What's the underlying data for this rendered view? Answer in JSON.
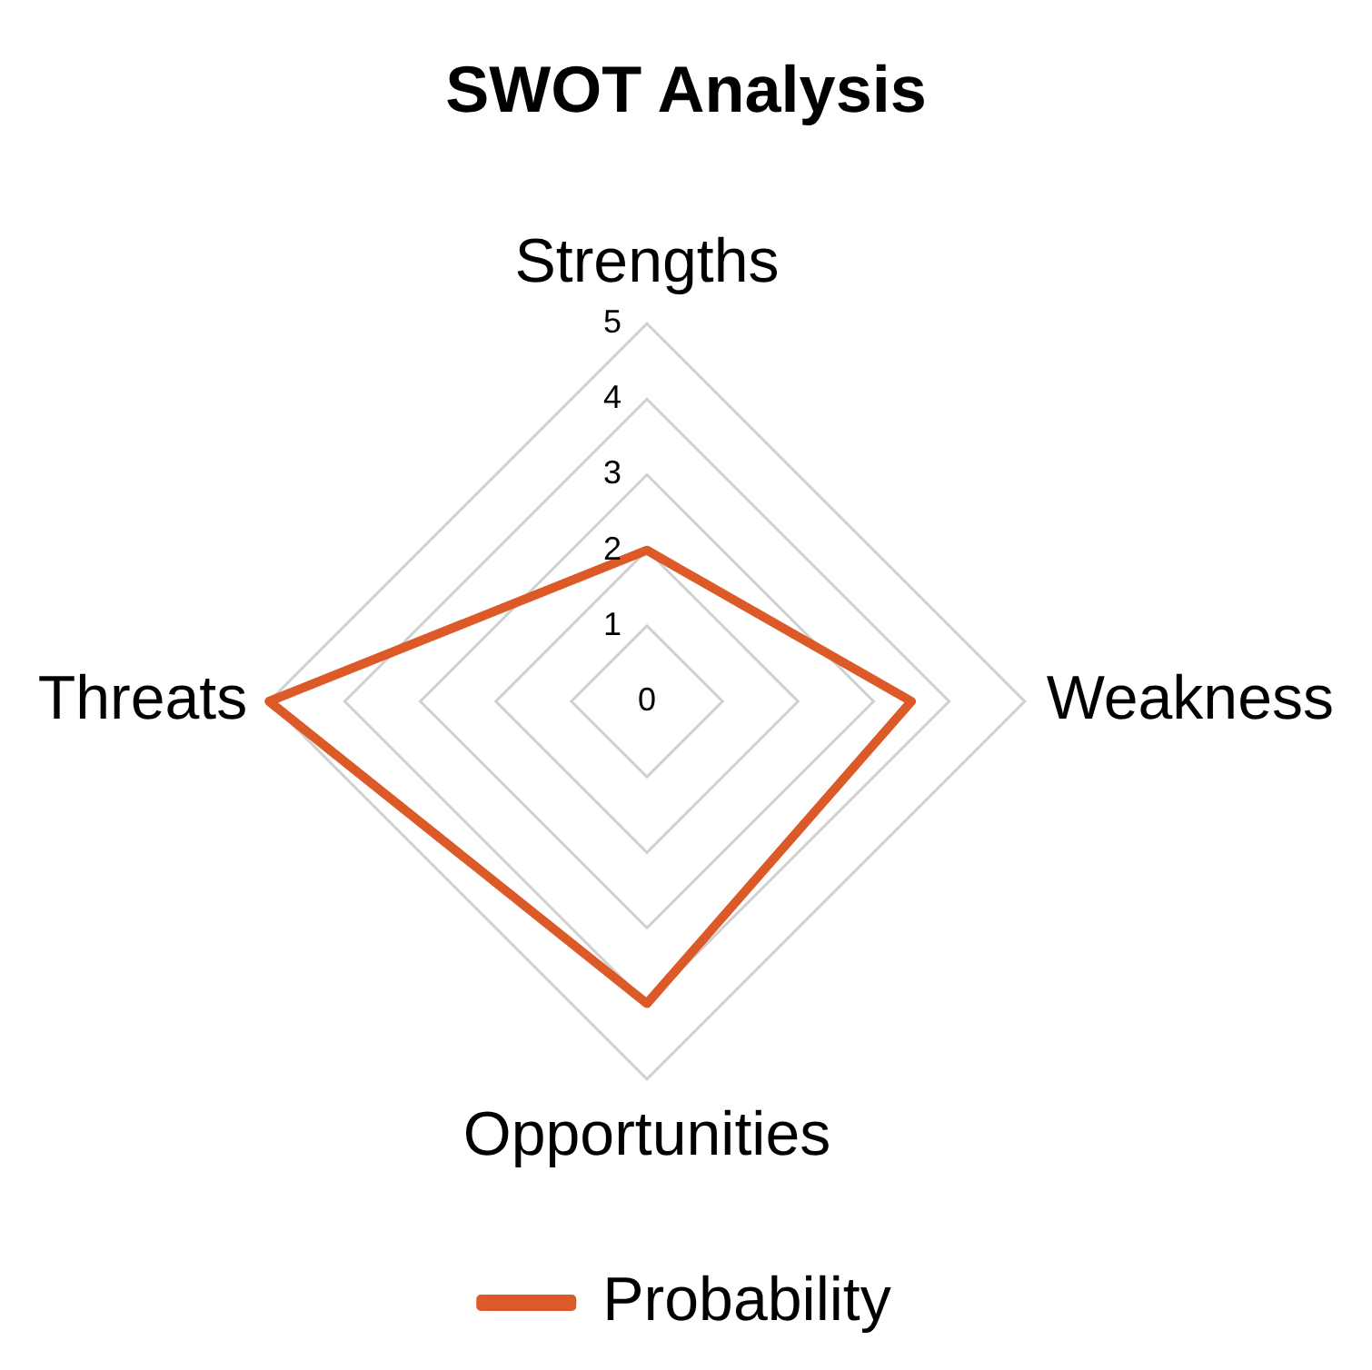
{
  "chart_data": {
    "type": "radar",
    "title": "SWOT Analysis",
    "categories": [
      "Strengths",
      "Weakness",
      "Opportunities",
      "Threats"
    ],
    "series": [
      {
        "name": "Probability",
        "color": "#dc5a28",
        "values": [
          2,
          3.5,
          4,
          5
        ]
      }
    ],
    "ylim": [
      0,
      5
    ],
    "yticks": [
      0,
      1,
      2,
      3,
      4,
      5
    ],
    "grid": true,
    "legend": "bottom",
    "marker": "none",
    "line_style": "solid"
  }
}
